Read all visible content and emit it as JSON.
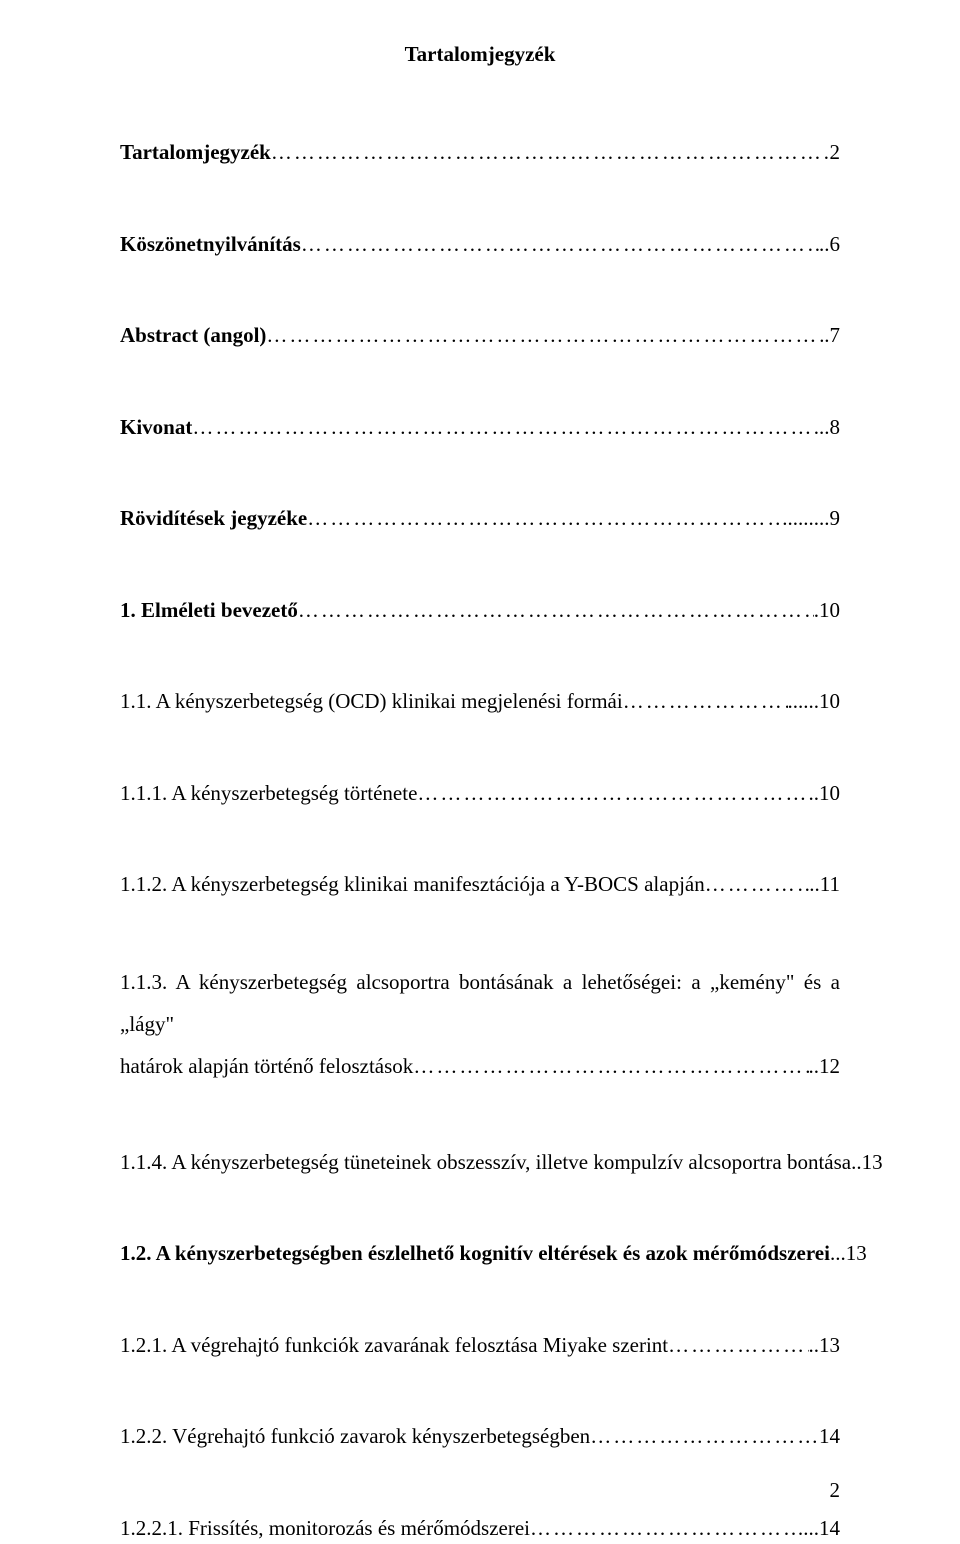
{
  "document": {
    "title": "Tartalomjegyzék",
    "page_number": "2",
    "font_family": "Times New Roman",
    "text_color": "#000000",
    "background_color": "#ffffff",
    "title_fontsize": 21,
    "body_fontsize": 21,
    "entries": [
      {
        "label": "Tartalomjegyzék",
        "page": "2",
        "bold": true,
        "multiline": false
      },
      {
        "label": "Köszönetnyilvánítás",
        "page": "..6",
        "bold": true,
        "multiline": false
      },
      {
        "label": "Abstract (angol)",
        "page": ".7",
        "bold": true,
        "multiline": false
      },
      {
        "label": "Kivonat",
        "page": "...8",
        "bold": true,
        "multiline": false
      },
      {
        "label": "Rövidítések jegyzéke",
        "page": ".........9",
        "bold": true,
        "multiline": false
      },
      {
        "label": "1. Elméleti bevezető",
        "page": ".10",
        "bold": true,
        "multiline": false
      },
      {
        "label": "1.1. A kényszerbetegség (OCD) klinikai megjelenési formái",
        "page": "......10",
        "bold": false,
        "multiline": false
      },
      {
        "label": "1.1.1. A kényszerbetegség története",
        "page": "..10",
        "bold": false,
        "multiline": false
      },
      {
        "label": "1.1.2. A kényszerbetegség klinikai manifesztációja a Y-BOCS alapján",
        "page": "..11",
        "bold": false,
        "multiline": false
      },
      {
        "label_line1": "1.1.3. A kényszerbetegség alcsoportra bontásának a lehetőségei: a „kemény\" és a „lágy\"",
        "label_line2": "határok alapján történő felosztások",
        "page": "..12",
        "bold": false,
        "multiline": true
      },
      {
        "label": "1.1.4. A kényszerbetegség tüneteinek obszesszív, illetve kompulzív alcsoportra bontása",
        "page": "..13",
        "bold": false,
        "multiline": false
      },
      {
        "label": "1.2. A kényszerbetegségben észlelhető kognitív eltérések és azok mérőmódszerei",
        "page": "...13",
        "bold": true,
        "multiline": false
      },
      {
        "label": "1.2.1. A végrehajtó funkciók zavarának felosztása Miyake szerint",
        "page": "..13",
        "bold": false,
        "multiline": false
      },
      {
        "label": "1.2.2. Végrehajtó funkció zavarok kényszerbetegségben",
        "page": "14",
        "bold": false,
        "multiline": false
      },
      {
        "label": "1.2.2.1. Frissítés, monitorozás és mérőmódszerei",
        "page": "...14",
        "bold": false,
        "multiline": false
      }
    ],
    "leader_char": "…"
  }
}
